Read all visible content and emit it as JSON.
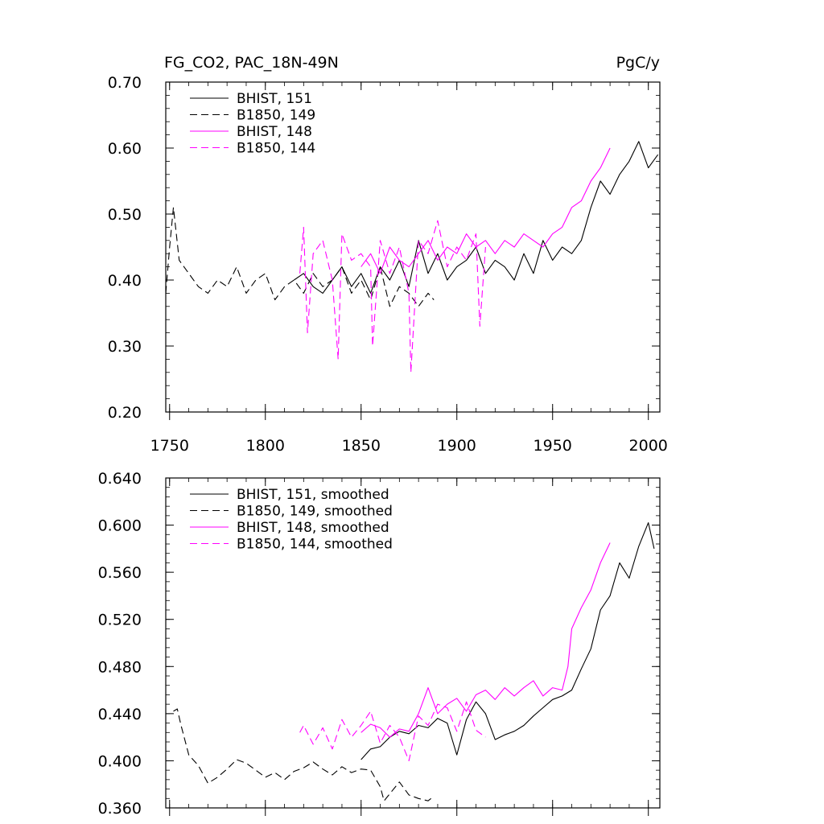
{
  "chart_data": [
    {
      "type": "line",
      "title": "FG_CO2, PAC_18N-49N",
      "units": "PgC/y",
      "xlim": [
        1748,
        2006
      ],
      "ylim": [
        0.2,
        0.7
      ],
      "xticks": [
        1750,
        1800,
        1850,
        1900,
        1950,
        2000
      ],
      "xtick_labels": [
        "1750",
        "1800",
        "1850",
        "1900",
        "1950",
        "2000"
      ],
      "yticks": [
        0.2,
        0.3,
        0.4,
        0.5,
        0.6,
        0.7
      ],
      "ytick_labels": [
        "0.20",
        "0.30",
        "0.40",
        "0.50",
        "0.60",
        "0.70"
      ],
      "legend_position": "top-left",
      "series": [
        {
          "name": "BHIST, 151",
          "color": "#000000",
          "dash": "solid",
          "x": [
            1815,
            1820,
            1825,
            1830,
            1835,
            1840,
            1845,
            1850,
            1855,
            1860,
            1865,
            1870,
            1875,
            1880,
            1885,
            1890,
            1895,
            1900,
            1905,
            1910,
            1915,
            1920,
            1925,
            1930,
            1935,
            1940,
            1945,
            1950,
            1955,
            1960,
            1965,
            1970,
            1975,
            1980,
            1985,
            1990,
            1995,
            2000,
            2005
          ],
          "y": [
            0.4,
            0.41,
            0.39,
            0.38,
            0.4,
            0.42,
            0.39,
            0.41,
            0.38,
            0.42,
            0.4,
            0.43,
            0.39,
            0.46,
            0.41,
            0.44,
            0.4,
            0.42,
            0.43,
            0.45,
            0.41,
            0.43,
            0.42,
            0.4,
            0.44,
            0.41,
            0.46,
            0.43,
            0.45,
            0.44,
            0.46,
            0.51,
            0.55,
            0.53,
            0.56,
            0.58,
            0.61,
            0.57,
            0.59
          ]
        },
        {
          "name": "B1850, 149",
          "color": "#000000",
          "dash": "dashed",
          "x": [
            1748,
            1750,
            1752,
            1755,
            1760,
            1765,
            1770,
            1775,
            1780,
            1785,
            1790,
            1795,
            1800,
            1805,
            1810,
            1815,
            1820,
            1825,
            1830,
            1835,
            1840,
            1845,
            1850,
            1855,
            1860,
            1865,
            1870,
            1875,
            1880,
            1885,
            1888
          ],
          "y": [
            0.38,
            0.45,
            0.51,
            0.43,
            0.41,
            0.39,
            0.38,
            0.4,
            0.39,
            0.42,
            0.38,
            0.4,
            0.41,
            0.37,
            0.39,
            0.4,
            0.38,
            0.41,
            0.39,
            0.4,
            0.42,
            0.38,
            0.4,
            0.37,
            0.42,
            0.36,
            0.39,
            0.38,
            0.36,
            0.38,
            0.37
          ]
        },
        {
          "name": "BHIST, 148",
          "color": "#ff00ff",
          "dash": "solid",
          "x": [
            1850,
            1855,
            1860,
            1865,
            1870,
            1875,
            1880,
            1885,
            1890,
            1895,
            1900,
            1905,
            1910,
            1915,
            1920,
            1925,
            1930,
            1935,
            1940,
            1945,
            1950,
            1955,
            1960,
            1965,
            1970,
            1975,
            1980
          ],
          "y": [
            0.42,
            0.44,
            0.41,
            0.45,
            0.43,
            0.42,
            0.44,
            0.46,
            0.43,
            0.45,
            0.44,
            0.47,
            0.45,
            0.46,
            0.44,
            0.46,
            0.45,
            0.47,
            0.46,
            0.45,
            0.47,
            0.48,
            0.51,
            0.52,
            0.55,
            0.57,
            0.6
          ]
        },
        {
          "name": "B1850, 144",
          "color": "#ff00ff",
          "dash": "dashed",
          "x": [
            1818,
            1820,
            1822,
            1825,
            1830,
            1835,
            1838,
            1840,
            1845,
            1850,
            1855,
            1856,
            1860,
            1865,
            1870,
            1875,
            1876,
            1880,
            1885,
            1890,
            1895,
            1900,
            1905,
            1910,
            1912,
            1915
          ],
          "y": [
            0.41,
            0.48,
            0.32,
            0.44,
            0.46,
            0.4,
            0.28,
            0.47,
            0.43,
            0.44,
            0.42,
            0.3,
            0.46,
            0.41,
            0.45,
            0.38,
            0.26,
            0.46,
            0.44,
            0.49,
            0.42,
            0.45,
            0.43,
            0.47,
            0.33,
            0.45
          ]
        }
      ]
    },
    {
      "type": "line",
      "xlim": [
        1748,
        2006
      ],
      "ylim": [
        0.36,
        0.64
      ],
      "yticks": [
        0.36,
        0.4,
        0.44,
        0.48,
        0.52,
        0.56,
        0.6,
        0.64
      ],
      "ytick_labels": [
        "0.360",
        "0.400",
        "0.440",
        "0.480",
        "0.520",
        "0.560",
        "0.600",
        "0.640"
      ],
      "legend_position": "top-left",
      "series": [
        {
          "name": "BHIST, 151, smoothed",
          "color": "#000000",
          "dash": "solid",
          "x": [
            1850,
            1855,
            1860,
            1865,
            1870,
            1875,
            1880,
            1885,
            1890,
            1895,
            1900,
            1905,
            1910,
            1915,
            1920,
            1925,
            1930,
            1935,
            1940,
            1945,
            1950,
            1955,
            1960,
            1965,
            1970,
            1975,
            1980,
            1985,
            1990,
            1995,
            2000,
            2003
          ],
          "y": [
            0.401,
            0.41,
            0.412,
            0.42,
            0.425,
            0.423,
            0.43,
            0.428,
            0.436,
            0.432,
            0.405,
            0.435,
            0.45,
            0.44,
            0.418,
            0.422,
            0.425,
            0.43,
            0.438,
            0.445,
            0.452,
            0.455,
            0.46,
            0.478,
            0.495,
            0.528,
            0.54,
            0.568,
            0.555,
            0.582,
            0.602,
            0.58
          ]
        },
        {
          "name": "B1850, 149, smoothed",
          "color": "#000000",
          "dash": "dashed",
          "x": [
            1752,
            1754,
            1756,
            1760,
            1765,
            1770,
            1775,
            1780,
            1785,
            1790,
            1795,
            1800,
            1805,
            1810,
            1815,
            1820,
            1825,
            1830,
            1835,
            1840,
            1845,
            1850,
            1855,
            1860,
            1862,
            1865,
            1870,
            1875,
            1880,
            1885,
            1888
          ],
          "y": [
            0.442,
            0.444,
            0.43,
            0.405,
            0.396,
            0.381,
            0.386,
            0.393,
            0.401,
            0.398,
            0.392,
            0.386,
            0.39,
            0.384,
            0.391,
            0.394,
            0.399,
            0.393,
            0.388,
            0.395,
            0.39,
            0.393,
            0.392,
            0.378,
            0.366,
            0.372,
            0.382,
            0.371,
            0.368,
            0.366,
            0.37
          ]
        },
        {
          "name": "BHIST, 148, smoothed",
          "color": "#ff00ff",
          "dash": "solid",
          "x": [
            1850,
            1855,
            1860,
            1865,
            1870,
            1875,
            1880,
            1885,
            1890,
            1895,
            1900,
            1905,
            1910,
            1915,
            1920,
            1925,
            1930,
            1935,
            1940,
            1945,
            1950,
            1955,
            1958,
            1960,
            1965,
            1970,
            1975,
            1980
          ],
          "y": [
            0.424,
            0.431,
            0.428,
            0.42,
            0.427,
            0.425,
            0.44,
            0.462,
            0.44,
            0.448,
            0.453,
            0.442,
            0.456,
            0.46,
            0.452,
            0.462,
            0.455,
            0.462,
            0.468,
            0.455,
            0.462,
            0.46,
            0.48,
            0.512,
            0.53,
            0.545,
            0.568,
            0.585
          ]
        },
        {
          "name": "B1850, 144, smoothed",
          "color": "#ff00ff",
          "dash": "dashed",
          "x": [
            1818,
            1820,
            1825,
            1830,
            1835,
            1840,
            1845,
            1850,
            1855,
            1860,
            1865,
            1870,
            1875,
            1880,
            1885,
            1890,
            1895,
            1900,
            1905,
            1910,
            1915
          ],
          "y": [
            0.424,
            0.43,
            0.414,
            0.428,
            0.41,
            0.435,
            0.42,
            0.43,
            0.442,
            0.415,
            0.43,
            0.42,
            0.4,
            0.438,
            0.43,
            0.448,
            0.445,
            0.425,
            0.45,
            0.426,
            0.42
          ]
        }
      ]
    }
  ]
}
